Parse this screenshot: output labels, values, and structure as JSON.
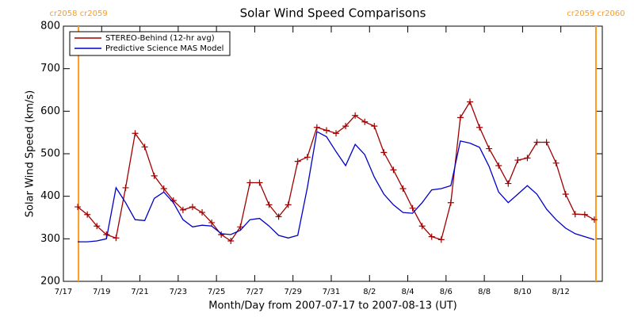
{
  "chart_data": {
    "type": "line",
    "title": "Solar Wind Speed Comparisons",
    "x_label": "Month/Day from 2007-07-17 to 2007-08-13 (UT)",
    "y_label": "Solar Wind Speed (km/s)",
    "x": [
      "2007-07-17 18:00",
      "2007-07-18 06:00",
      "2007-07-18 18:00",
      "2007-07-19 06:00",
      "2007-07-19 18:00",
      "2007-07-20 06:00",
      "2007-07-20 18:00",
      "2007-07-21 06:00",
      "2007-07-21 18:00",
      "2007-07-22 06:00",
      "2007-07-22 18:00",
      "2007-07-23 06:00",
      "2007-07-23 18:00",
      "2007-07-24 06:00",
      "2007-07-24 18:00",
      "2007-07-25 06:00",
      "2007-07-25 18:00",
      "2007-07-26 06:00",
      "2007-07-26 18:00",
      "2007-07-27 06:00",
      "2007-07-27 18:00",
      "2007-07-28 06:00",
      "2007-07-28 18:00",
      "2007-07-29 06:00",
      "2007-07-29 18:00",
      "2007-07-30 06:00",
      "2007-07-30 18:00",
      "2007-07-31 06:00",
      "2007-07-31 18:00",
      "2007-08-01 06:00",
      "2007-08-01 18:00",
      "2007-08-02 06:00",
      "2007-08-02 18:00",
      "2007-08-03 06:00",
      "2007-08-03 18:00",
      "2007-08-04 06:00",
      "2007-08-04 18:00",
      "2007-08-05 06:00",
      "2007-08-05 18:00",
      "2007-08-06 06:00",
      "2007-08-06 18:00",
      "2007-08-07 06:00",
      "2007-08-07 18:00",
      "2007-08-08 06:00",
      "2007-08-08 18:00",
      "2007-08-09 06:00",
      "2007-08-09 18:00",
      "2007-08-10 06:00",
      "2007-08-10 18:00",
      "2007-08-11 06:00",
      "2007-08-11 18:00",
      "2007-08-12 06:00",
      "2007-08-12 18:00",
      "2007-08-13 06:00",
      "2007-08-13 18:00"
    ],
    "series": [
      {
        "name": "STEREO-Behind (12-hr avg)",
        "color": "#a00000",
        "markers": true,
        "values": [
          375,
          357,
          330,
          310,
          302,
          420,
          548,
          516,
          448,
          418,
          390,
          368,
          375,
          362,
          338,
          310,
          295,
          328,
          432,
          432,
          380,
          352,
          380,
          482,
          492,
          562,
          555,
          548,
          565,
          590,
          575,
          565,
          503,
          462,
          418,
          372,
          330,
          305,
          298,
          385,
          585,
          622,
          562,
          512,
          472,
          430,
          485,
          490,
          527,
          527,
          478,
          405,
          358,
          357,
          345
        ]
      },
      {
        "name": "Predictive Science MAS Model",
        "color": "#0000c8",
        "markers": false,
        "values": [
          293,
          293,
          295,
          300,
          420,
          385,
          345,
          343,
          395,
          410,
          385,
          345,
          328,
          332,
          330,
          312,
          310,
          320,
          345,
          348,
          330,
          308,
          302,
          308,
          420,
          552,
          540,
          505,
          472,
          522,
          498,
          445,
          405,
          380,
          362,
          360,
          385,
          415,
          418,
          425,
          530,
          525,
          515,
          470,
          410,
          385,
          405,
          425,
          405,
          370,
          345,
          325,
          312,
          305,
          298
        ]
      }
    ],
    "xlim": [
      "2007-07-17 00:00",
      "2007-08-14 04:00"
    ],
    "xticks": [
      {
        "value": "2007-07-17 00:00",
        "label": "7/17"
      },
      {
        "value": "2007-07-19 00:00",
        "label": "7/19"
      },
      {
        "value": "2007-07-21 00:00",
        "label": "7/21"
      },
      {
        "value": "2007-07-23 00:00",
        "label": "7/23"
      },
      {
        "value": "2007-07-25 00:00",
        "label": "7/25"
      },
      {
        "value": "2007-07-27 00:00",
        "label": "7/27"
      },
      {
        "value": "2007-07-29 00:00",
        "label": "7/29"
      },
      {
        "value": "2007-07-31 00:00",
        "label": "7/31"
      },
      {
        "value": "2007-08-02 00:00",
        "label": "8/2"
      },
      {
        "value": "2007-08-04 00:00",
        "label": "8/4"
      },
      {
        "value": "2007-08-06 00:00",
        "label": "8/6"
      },
      {
        "value": "2007-08-08 00:00",
        "label": "8/8"
      },
      {
        "value": "2007-08-10 00:00",
        "label": "8/10"
      },
      {
        "value": "2007-08-12 00:00",
        "label": "8/12"
      }
    ],
    "ylim": [
      200,
      800
    ],
    "yticks": [
      200,
      300,
      400,
      500,
      600,
      700,
      800
    ],
    "legend": "upper-left",
    "vlines": [
      {
        "x": "2007-07-17 19:00",
        "label": "cr2058 cr2059",
        "color": "#ff9a1a"
      },
      {
        "x": "2007-08-13 20:00",
        "label": "cr2059 cr2060",
        "color": "#ff9a1a"
      }
    ]
  }
}
